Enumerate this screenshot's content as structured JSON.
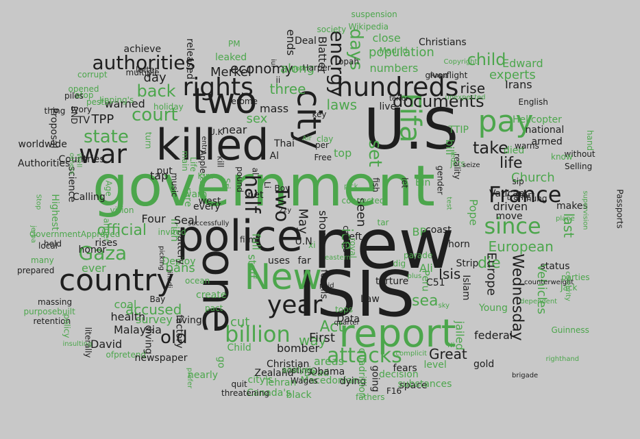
{
  "palette": {
    "background": "#c8c8c8",
    "dark": "#1e1e1e",
    "green": "#4ca64c"
  },
  "words": [
    {
      "text": "government",
      "tone": "green"
    },
    {
      "text": "U.S",
      "tone": "dark"
    },
    {
      "text": "new",
      "tone": "dark"
    },
    {
      "text": "ISIS",
      "tone": "dark"
    },
    {
      "text": "police",
      "tone": "dark"
    },
    {
      "text": "killed",
      "tone": "dark"
    },
    {
      "text": "one",
      "tone": "dark"
    },
    {
      "text": "report",
      "tone": "green"
    },
    {
      "text": "two",
      "tone": "dark"
    },
    {
      "text": "country",
      "tone": "dark"
    },
    {
      "text": "New",
      "tone": "green"
    },
    {
      "text": "city",
      "tone": "dark"
    },
    {
      "text": "Fifa",
      "tone": "green"
    },
    {
      "text": "hundreds",
      "tone": "dark"
    },
    {
      "text": "rights",
      "tone": "dark"
    },
    {
      "text": "pay",
      "tone": "green"
    },
    {
      "text": "war",
      "tone": "dark"
    },
    {
      "text": "year",
      "tone": "dark"
    },
    {
      "text": "billion",
      "tone": "green"
    },
    {
      "text": "France",
      "tone": "dark"
    },
    {
      "text": "since",
      "tone": "green"
    },
    {
      "text": "attacks",
      "tone": "green"
    },
    {
      "text": "half",
      "tone": "dark"
    },
    {
      "text": "Two",
      "tone": "dark"
    },
    {
      "text": "authorities",
      "tone": "dark"
    },
    {
      "text": "Gaza",
      "tone": "green"
    },
    {
      "text": "court",
      "tone": "green"
    },
    {
      "text": "state",
      "tone": "green"
    },
    {
      "text": "back",
      "tone": "green"
    },
    {
      "text": "official",
      "tone": "green"
    },
    {
      "text": "days",
      "tone": "green"
    },
    {
      "text": "set",
      "tone": "green"
    },
    {
      "text": "old",
      "tone": "dark"
    },
    {
      "text": "European",
      "tone": "green"
    },
    {
      "text": "take",
      "tone": "dark"
    },
    {
      "text": "documents",
      "tone": "dark"
    },
    {
      "text": "child",
      "tone": "green"
    },
    {
      "text": "energy",
      "tone": "dark"
    },
    {
      "text": "economy",
      "tone": "dark"
    },
    {
      "text": "Wednesday",
      "tone": "dark"
    },
    {
      "text": "life",
      "tone": "dark"
    },
    {
      "text": "Church",
      "tone": "green"
    },
    {
      "text": "die",
      "tone": "green"
    },
    {
      "text": "Act",
      "tone": "green"
    },
    {
      "text": "Isis",
      "tone": "dark"
    },
    {
      "text": "Europe",
      "tone": "dark"
    },
    {
      "text": "rise",
      "tone": "dark"
    },
    {
      "text": "last",
      "tone": "green"
    },
    {
      "text": "Great",
      "tone": "dark"
    },
    {
      "text": "ice",
      "tone": "green"
    },
    {
      "text": "way",
      "tone": "green"
    },
    {
      "text": "First",
      "tone": "dark"
    },
    {
      "text": "three",
      "tone": "green"
    },
    {
      "text": "laws",
      "tone": "green"
    },
    {
      "text": "along",
      "tone": "green"
    },
    {
      "text": "Merkel",
      "tone": "dark"
    },
    {
      "text": "population",
      "tone": "green"
    },
    {
      "text": "numbers",
      "tone": "green"
    },
    {
      "text": "close",
      "tone": "green"
    },
    {
      "text": "experts",
      "tone": "green"
    },
    {
      "text": "Edward",
      "tone": "green"
    },
    {
      "text": "day",
      "tone": "dark"
    },
    {
      "text": "warned",
      "tone": "dark"
    },
    {
      "text": "TPP",
      "tone": "dark"
    },
    {
      "text": "sex",
      "tone": "green"
    },
    {
      "text": "Malaysia",
      "tone": "dark"
    },
    {
      "text": "David",
      "tone": "dark"
    },
    {
      "text": "health",
      "tone": "dark"
    },
    {
      "text": "accused",
      "tone": "green"
    },
    {
      "text": "coal",
      "tone": "green"
    },
    {
      "text": "survey",
      "tone": "green"
    },
    {
      "text": "ever",
      "tone": "green"
    },
    {
      "text": "Irish",
      "tone": "green"
    },
    {
      "text": "bans",
      "tone": "green"
    },
    {
      "text": "Four",
      "tone": "dark"
    },
    {
      "text": "Seal",
      "tone": "dark"
    },
    {
      "text": "cut",
      "tone": "green"
    },
    {
      "text": "Child",
      "tone": "green"
    },
    {
      "text": "staff",
      "tone": "green"
    },
    {
      "text": "full",
      "tone": "green"
    },
    {
      "text": "bomber",
      "tone": "dark"
    },
    {
      "text": "Christian",
      "tone": "dark"
    },
    {
      "text": "Zealand",
      "tone": "dark"
    },
    {
      "text": "areas",
      "tone": "green"
    },
    {
      "text": "Dead",
      "tone": "green"
    },
    {
      "text": "Obama",
      "tone": "dark"
    },
    {
      "text": "sea",
      "tone": "green"
    },
    {
      "text": "jailed",
      "tone": "green"
    },
    {
      "text": "gold",
      "tone": "dark"
    },
    {
      "text": "federal",
      "tone": "dark"
    },
    {
      "text": "level",
      "tone": "green"
    },
    {
      "text": "Vehicles",
      "tone": "green"
    },
    {
      "text": "status",
      "tone": "dark"
    },
    {
      "text": "driven",
      "tone": "dark"
    },
    {
      "text": "move",
      "tone": "dark"
    },
    {
      "text": "makes",
      "tone": "dark"
    },
    {
      "text": "Vatican",
      "tone": "dark"
    },
    {
      "text": "Pope",
      "tone": "green"
    },
    {
      "text": "coast",
      "tone": "dark"
    },
    {
      "text": "BP",
      "tone": "green"
    },
    {
      "text": "Bin",
      "tone": "green"
    },
    {
      "text": "seen",
      "tone": "dark"
    },
    {
      "text": "May",
      "tone": "dark"
    },
    {
      "text": "shows",
      "tone": "dark"
    },
    {
      "text": "every",
      "tone": "dark"
    },
    {
      "text": "west",
      "tone": "dark"
    },
    {
      "text": "near",
      "tone": "dark"
    },
    {
      "text": "Al",
      "tone": "dark"
    },
    {
      "text": "Irans",
      "tone": "dark"
    },
    {
      "text": "national",
      "tone": "dark"
    },
    {
      "text": "armed",
      "tone": "dark"
    },
    {
      "text": "Helicopter",
      "tone": "green"
    },
    {
      "text": "died",
      "tone": "green"
    },
    {
      "text": "bill",
      "tone": "green"
    },
    {
      "text": "TTIP",
      "tone": "green"
    },
    {
      "text": "top",
      "tone": "green"
    },
    {
      "text": "mass",
      "tone": "dark"
    },
    {
      "text": "live",
      "tone": "dark"
    },
    {
      "text": "left",
      "tone": "dark"
    },
    {
      "text": "torture",
      "tone": "dark"
    },
    {
      "text": "uses",
      "tone": "dark"
    },
    {
      "text": "far",
      "tone": "dark"
    },
    {
      "text": "Law",
      "tone": "dark"
    },
    {
      "text": "Data",
      "tone": "dark"
    },
    {
      "text": "fossils",
      "tone": "dark"
    },
    {
      "text": "Ali",
      "tone": "green"
    },
    {
      "text": "Strip",
      "tone": "dark"
    },
    {
      "text": "Islam",
      "tone": "dark"
    },
    {
      "text": "horn",
      "tone": "dark"
    },
    {
      "text": "C51",
      "tone": "dark"
    },
    {
      "text": "Peru",
      "tone": "green"
    },
    {
      "text": "Young",
      "tone": "green"
    },
    {
      "text": "Jack",
      "tone": "green"
    },
    {
      "text": "parties",
      "tone": "green"
    },
    {
      "text": "Guinness",
      "tone": "green"
    },
    {
      "text": "Blatter",
      "tone": "dark"
    },
    {
      "text": "Deal",
      "tone": "dark"
    },
    {
      "text": "ends",
      "tone": "dark"
    },
    {
      "text": "Christians",
      "tone": "dark"
    },
    {
      "text": "Madrid",
      "tone": "green"
    },
    {
      "text": "achieve",
      "tone": "dark"
    },
    {
      "text": "letter",
      "tone": "dark"
    },
    {
      "text": "released",
      "tone": "dark"
    },
    {
      "text": "leaked",
      "tone": "green"
    },
    {
      "text": "PM",
      "tone": "green"
    },
    {
      "text": "society",
      "tone": "green"
    },
    {
      "text": "opah",
      "tone": "dark"
    },
    {
      "text": "Harper",
      "tone": "dark"
    },
    {
      "text": "Rape",
      "tone": "dark"
    },
    {
      "text": "given",
      "tone": "dark"
    },
    {
      "text": "flight",
      "tone": "dark"
    },
    {
      "text": "English",
      "tone": "dark"
    },
    {
      "text": "holiday",
      "tone": "green"
    },
    {
      "text": "thing",
      "tone": "dark"
    },
    {
      "text": "BND",
      "tone": "dark"
    },
    {
      "text": "Proposal",
      "tone": "dark"
    },
    {
      "text": "Authorities",
      "tone": "dark"
    },
    {
      "text": "worldwide",
      "tone": "dark"
    },
    {
      "text": "Countries",
      "tone": "dark"
    },
    {
      "text": "science",
      "tone": "dark"
    },
    {
      "text": "Calling",
      "tone": "dark"
    },
    {
      "text": "honor",
      "tone": "dark"
    },
    {
      "text": "held",
      "tone": "dark"
    },
    {
      "text": "local",
      "tone": "dark"
    },
    {
      "text": "many",
      "tone": "green"
    },
    {
      "text": "prepared",
      "tone": "dark"
    },
    {
      "text": "massing",
      "tone": "dark"
    },
    {
      "text": "purposebuilt",
      "tone": "green"
    },
    {
      "text": "retention",
      "tone": "dark"
    },
    {
      "text": "literally",
      "tone": "dark"
    },
    {
      "text": "ofpretend",
      "tone": "green"
    },
    {
      "text": "newspaper",
      "tone": "dark"
    },
    {
      "text": "diving",
      "tone": "dark"
    },
    {
      "text": "factory",
      "tone": "dark"
    },
    {
      "text": "living",
      "tone": "dark"
    },
    {
      "text": "nearly",
      "tone": "green"
    },
    {
      "text": "go",
      "tone": "green"
    },
    {
      "text": "city's",
      "tone": "green"
    },
    {
      "text": "Canada's",
      "tone": "green"
    },
    {
      "text": "black",
      "tone": "green"
    },
    {
      "text": "Tehran",
      "tone": "green"
    },
    {
      "text": "Macedonian",
      "tone": "green"
    },
    {
      "text": "dying",
      "tone": "dark"
    },
    {
      "text": "going",
      "tone": "dark"
    },
    {
      "text": "decision",
      "tone": "green"
    },
    {
      "text": "fears",
      "tone": "dark"
    },
    {
      "text": "space",
      "tone": "dark"
    },
    {
      "text": "F16",
      "tone": "dark"
    },
    {
      "text": "substances",
      "tone": "green"
    },
    {
      "text": "fathers",
      "tone": "green"
    },
    {
      "text": "quadrillion",
      "tone": "green"
    },
    {
      "text": "threatening",
      "tone": "dark"
    },
    {
      "text": "posting",
      "tone": "dark"
    },
    {
      "text": "Wages",
      "tone": "dark"
    },
    {
      "text": "quit",
      "tone": "dark"
    },
    {
      "text": "analysis",
      "tone": "green"
    },
    {
      "text": "Deploy",
      "tone": "green"
    },
    {
      "text": "rises",
      "tone": "dark"
    },
    {
      "text": "battery",
      "tone": "dark"
    },
    {
      "text": "Bay",
      "tone": "dark"
    },
    {
      "text": "create",
      "tone": "green"
    },
    {
      "text": "pact",
      "tone": "green"
    },
    {
      "text": "tap",
      "tone": "dark"
    },
    {
      "text": "TV",
      "tone": "dark"
    },
    {
      "text": "put",
      "tone": "dark"
    },
    {
      "text": "U.K",
      "tone": "dark"
    },
    {
      "text": "kill",
      "tone": "dark"
    },
    {
      "text": "Li",
      "tone": "dark"
    },
    {
      "text": "net",
      "tone": "dark"
    },
    {
      "text": "pound",
      "tone": "dark"
    },
    {
      "text": "al",
      "tone": "dark"
    },
    {
      "text": "Thai",
      "tone": "dark"
    },
    {
      "text": "per",
      "tone": "dark"
    },
    {
      "text": "Free",
      "tone": "dark"
    },
    {
      "text": "Kim",
      "tone": "green"
    },
    {
      "text": "Sri",
      "tone": "green"
    },
    {
      "text": "firm",
      "tone": "dark"
    },
    {
      "text": "rare",
      "tone": "green"
    },
    {
      "text": "warn",
      "tone": "green"
    },
    {
      "text": "invited",
      "tone": "green"
    },
    {
      "text": "vision",
      "tone": "green"
    },
    {
      "text": "Age",
      "tone": "green"
    },
    {
      "text": "corrupt",
      "tone": "green"
    },
    {
      "text": "atop",
      "tone": "green"
    },
    {
      "text": "piles",
      "tone": "dark"
    },
    {
      "text": "Ivory",
      "tone": "dark"
    },
    {
      "text": "Jinping's",
      "tone": "green"
    },
    {
      "text": "opened",
      "tone": "green"
    },
    {
      "text": "pests",
      "tone": "green"
    },
    {
      "text": "Jerome",
      "tone": "dark"
    },
    {
      "text": "multiple",
      "tone": "dark"
    },
    {
      "text": "Wikipedia",
      "tone": "green"
    },
    {
      "text": "suspension",
      "tone": "green"
    },
    {
      "text": "Copyright",
      "tone": "green"
    },
    {
      "text": "unexpected",
      "tone": "green"
    },
    {
      "text": "sip",
      "tone": "dark"
    },
    {
      "text": "traffic",
      "tone": "dark"
    },
    {
      "text": "start",
      "tone": "dark"
    },
    {
      "text": "hung",
      "tone": "dark"
    },
    {
      "text": "plane",
      "tone": "green"
    },
    {
      "text": "supervision",
      "tone": "green"
    },
    {
      "text": "Passports",
      "tone": "dark"
    },
    {
      "text": "Selling",
      "tone": "dark"
    },
    {
      "text": "without",
      "tone": "dark"
    },
    {
      "text": "know",
      "tone": "green"
    },
    {
      "text": "hand",
      "tone": "green"
    },
    {
      "text": "jets",
      "tone": "green"
    },
    {
      "text": "seize",
      "tone": "dark"
    },
    {
      "text": "warns",
      "tone": "dark"
    },
    {
      "text": "reality",
      "tone": "dark"
    },
    {
      "text": "counterweight",
      "tone": "dark"
    },
    {
      "text": "celebrity",
      "tone": "green"
    },
    {
      "text": "dependent",
      "tone": "green"
    },
    {
      "text": "righthand",
      "tone": "green"
    },
    {
      "text": "brigade",
      "tone": "dark"
    },
    {
      "text": "prefer",
      "tone": "green"
    },
    {
      "text": "insulting",
      "tone": "green"
    },
    {
      "text": "policy",
      "tone": "green"
    },
    {
      "text": "anger",
      "tone": "green"
    },
    {
      "text": "Highest",
      "tone": "green"
    },
    {
      "text": "GovernmentApproved",
      "tone": "green"
    },
    {
      "text": "jerba",
      "tone": "green"
    },
    {
      "text": "Stop",
      "tone": "green"
    },
    {
      "text": "picking",
      "tone": "dark"
    },
    {
      "text": "jihadi",
      "tone": "dark"
    },
    {
      "text": "ocean",
      "tone": "green"
    },
    {
      "text": "successfully",
      "tone": "dark"
    },
    {
      "text": "eastern",
      "tone": "green"
    },
    {
      "text": "royal",
      "tone": "green"
    },
    {
      "text": "camps",
      "tone": "dark"
    },
    {
      "text": "tar",
      "tone": "green"
    },
    {
      "text": "let",
      "tone": "dark"
    },
    {
      "text": "dig",
      "tone": "green"
    },
    {
      "text": "plus",
      "tone": "green"
    },
    {
      "text": "complicit",
      "tone": "green"
    },
    {
      "text": "Ni",
      "tone": "green"
    },
    {
      "text": "sky",
      "tone": "green"
    },
    {
      "text": "gender",
      "tone": "dark"
    },
    {
      "text": "test",
      "tone": "green"
    },
    {
      "text": "led",
      "tone": "green"
    },
    {
      "text": "quarter",
      "tone": "dark"
    },
    {
      "text": "tops",
      "tone": "green"
    },
    {
      "text": "paid",
      "tone": "dark"
    },
    {
      "text": "terror",
      "tone": "dark"
    },
    {
      "text": "key",
      "tone": "dark"
    },
    {
      "text": "clay",
      "tone": "green"
    },
    {
      "text": "Air",
      "tone": "green"
    },
    {
      "text": "pick",
      "tone": "green"
    },
    {
      "text": "fish",
      "tone": "dark"
    },
    {
      "text": "connected",
      "tone": "green"
    },
    {
      "text": "parade",
      "tone": "green"
    },
    {
      "text": "others",
      "tone": "green"
    },
    {
      "text": "Well",
      "tone": "green"
    },
    {
      "text": "turn",
      "tone": "green"
    },
    {
      "text": "main",
      "tone": "green"
    },
    {
      "text": "Life",
      "tone": "green"
    },
    {
      "text": "Apple",
      "tone": "dark"
    },
    {
      "text": "Boy",
      "tone": "dark"
    },
    {
      "text": "music",
      "tone": "dark"
    },
    {
      "text": "tests",
      "tone": "green"
    },
    {
      "text": "govt",
      "tone": "green"
    },
    {
      "text": "22y",
      "tone": "dark"
    },
    {
      "text": "xi",
      "tone": "green"
    },
    {
      "text": "ii",
      "tone": "dark"
    },
    {
      "text": "entry",
      "tone": "dark"
    },
    {
      "text": "iui",
      "tone": "dark"
    },
    {
      "text": "U.N",
      "tone": "dark"
    }
  ]
}
